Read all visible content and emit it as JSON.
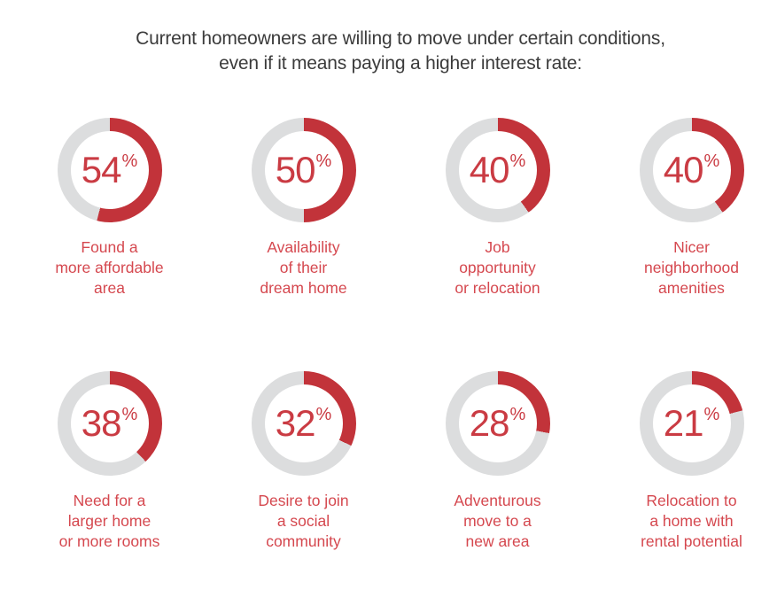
{
  "title": {
    "text": "Current homeowners are willing to move under certain conditions,\neven if it means paying a higher interest rate:"
  },
  "colors": {
    "title_text": "#3b3b3b",
    "ring_fill": "#c2333a",
    "ring_track": "#dcddde",
    "value_text": "#ca3b43",
    "label_text": "#d5484f",
    "background": "#ffffff"
  },
  "charts": {
    "percent_sign": "%",
    "items": [
      {
        "value": "54",
        "percent": 54,
        "label": "Found a\nmore affordable\narea"
      },
      {
        "value": "50",
        "percent": 50,
        "label": "Availability\nof their\ndream home"
      },
      {
        "value": "40",
        "percent": 40,
        "label": "Job\nopportunity\nor relocation"
      },
      {
        "value": "40",
        "percent": 40,
        "label": "Nicer\nneighborhood\namenities"
      },
      {
        "value": "38",
        "percent": 38,
        "label": "Need for a\nlarger home\nor more rooms"
      },
      {
        "value": "32",
        "percent": 32,
        "label": "Desire to join\na social\ncommunity"
      },
      {
        "value": "28",
        "percent": 28,
        "label": "Adventurous\nmove to a\nnew area"
      },
      {
        "value": "21",
        "percent": 21,
        "label": "Relocation to\na home with\nrental potential"
      }
    ]
  },
  "chart_data": {
    "type": "pie",
    "subtype": "donut-gauge-grid",
    "layout": "4 columns x 2 rows of donut gauges, percentage label centered in each ring, category caption below",
    "title": "Current homeowners are willing to move under certain conditions, even if it means paying a higher interest rate:",
    "unit": "%",
    "categories": [
      "Found a more affordable area",
      "Availability of their dream home",
      "Job opportunity or relocation",
      "Nicer neighborhood amenities",
      "Need for a larger home or more rooms",
      "Desire to join a social community",
      "Adventurous move to a new area",
      "Relocation to a home with rental potential"
    ],
    "values": [
      54,
      50,
      40,
      40,
      38,
      32,
      28,
      21
    ],
    "arc_start": "top",
    "arc_direction": "clockwise",
    "fill_color": "#c2333a",
    "track_color": "#dcddde"
  }
}
